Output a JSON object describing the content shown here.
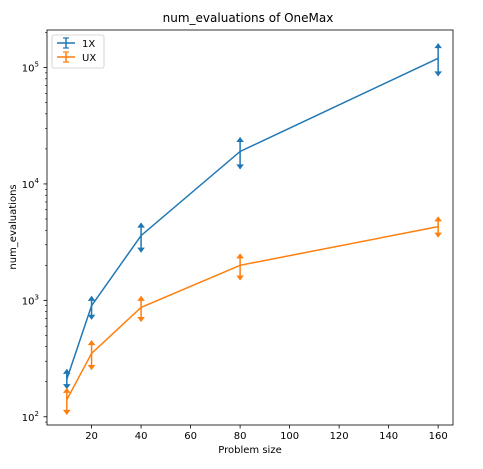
{
  "chart_data": {
    "type": "line",
    "title": "num_evaluations of OneMax",
    "xlabel": "Problem size",
    "ylabel": "num_evaluations",
    "yscale": "log",
    "xlim": [
      2,
      166
    ],
    "ylim": [
      85,
      210000
    ],
    "grid": false,
    "legend_position": "top-left",
    "x": [
      10,
      20,
      40,
      80,
      160
    ],
    "x_ticks": [
      20,
      40,
      60,
      80,
      100,
      120,
      140,
      160
    ],
    "y_ticks": [
      {
        "value": 100,
        "label": "10²",
        "base": "10",
        "exp": "2"
      },
      {
        "value": 1000,
        "label": "10³",
        "base": "10",
        "exp": "3"
      },
      {
        "value": 10000,
        "label": "10⁴",
        "base": "10",
        "exp": "4"
      },
      {
        "value": 100000,
        "label": "10⁵",
        "base": "10",
        "exp": "5"
      }
    ],
    "series": [
      {
        "name": "1X",
        "color": "#1f77b4",
        "values": [
          210,
          900,
          3600,
          19000,
          120000
        ],
        "err_low": [
          175,
          690,
          2600,
          13500,
          85000
        ],
        "err_high": [
          255,
          1080,
          4600,
          25000,
          160000
        ]
      },
      {
        "name": "UX",
        "color": "#ff7f0e",
        "values": [
          140,
          350,
          870,
          2000,
          4300
        ],
        "err_low": [
          105,
          255,
          660,
          1500,
          3500
        ],
        "err_high": [
          175,
          450,
          1080,
          2500,
          5200
        ]
      }
    ]
  }
}
